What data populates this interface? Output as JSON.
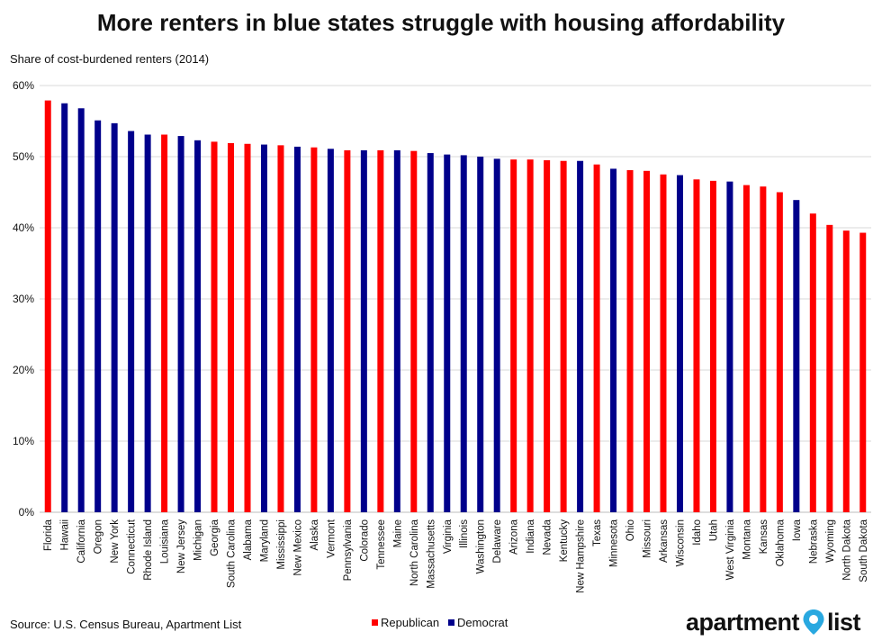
{
  "title": "More renters in blue states struggle with housing affordability",
  "subtitle": "Share of cost-burdened renters (2014)",
  "source": "Source: U.S. Census Bureau, Apartment List",
  "logo": {
    "left_text": "apartment",
    "right_text": "list",
    "pin_color": "#29a8e0"
  },
  "colors": {
    "Republican": "#ff0000",
    "Democrat": "#00008b"
  },
  "chart_data": {
    "type": "bar",
    "title": "More renters in blue states struggle with housing affordability",
    "ylabel": "Share of cost-burdened renters (2014)",
    "ylim": [
      0,
      60
    ],
    "yticks": [
      0,
      10,
      20,
      30,
      40,
      50,
      60
    ],
    "ytick_labels": [
      "0%",
      "10%",
      "20%",
      "30%",
      "40%",
      "50%",
      "60%"
    ],
    "grid": true,
    "legend": {
      "placement": "bottom-center",
      "entries": [
        "Republican",
        "Democrat"
      ]
    },
    "categories": [
      "Florida",
      "Hawaii",
      "California",
      "Oregon",
      "New York",
      "Connecticut",
      "Rhode Island",
      "Louisiana",
      "New Jersey",
      "Michigan",
      "Georgia",
      "South Carolina",
      "Alabama",
      "Maryland",
      "Mississippi",
      "New Mexico",
      "Alaska",
      "Vermont",
      "Pennsylvania",
      "Colorado",
      "Tennessee",
      "Maine",
      "North Carolina",
      "Massachusetts",
      "Virginia",
      "Illinois",
      "Washington",
      "Delaware",
      "Arizona",
      "Indiana",
      "Nevada",
      "Kentucky",
      "New Hampshire",
      "Texas",
      "Minnesota",
      "Ohio",
      "Missouri",
      "Arkansas",
      "Wisconsin",
      "Idaho",
      "Utah",
      "West Virginia",
      "Montana",
      "Kansas",
      "Oklahoma",
      "Iowa",
      "Nebraska",
      "Wyoming",
      "North Dakota",
      "South Dakota"
    ],
    "values": [
      57.9,
      57.5,
      56.8,
      55.1,
      54.7,
      53.6,
      53.1,
      53.1,
      52.9,
      52.3,
      52.1,
      51.9,
      51.8,
      51.7,
      51.6,
      51.4,
      51.3,
      51.1,
      50.9,
      50.9,
      50.9,
      50.9,
      50.8,
      50.5,
      50.3,
      50.2,
      50.0,
      49.7,
      49.6,
      49.6,
      49.5,
      49.4,
      49.4,
      48.9,
      48.3,
      48.1,
      48.0,
      47.5,
      47.4,
      46.8,
      46.6,
      46.5,
      46.0,
      45.8,
      45.0,
      43.9,
      42.0,
      40.4,
      39.6,
      39.3
    ],
    "party": [
      "Republican",
      "Democrat",
      "Democrat",
      "Democrat",
      "Democrat",
      "Democrat",
      "Democrat",
      "Republican",
      "Democrat",
      "Democrat",
      "Republican",
      "Republican",
      "Republican",
      "Democrat",
      "Republican",
      "Democrat",
      "Republican",
      "Democrat",
      "Republican",
      "Democrat",
      "Republican",
      "Democrat",
      "Republican",
      "Democrat",
      "Democrat",
      "Democrat",
      "Democrat",
      "Democrat",
      "Republican",
      "Republican",
      "Republican",
      "Republican",
      "Democrat",
      "Republican",
      "Democrat",
      "Republican",
      "Republican",
      "Republican",
      "Democrat",
      "Republican",
      "Republican",
      "Democrat",
      "Republican",
      "Republican",
      "Republican",
      "Democrat",
      "Republican",
      "Republican",
      "Republican",
      "Republican"
    ]
  }
}
